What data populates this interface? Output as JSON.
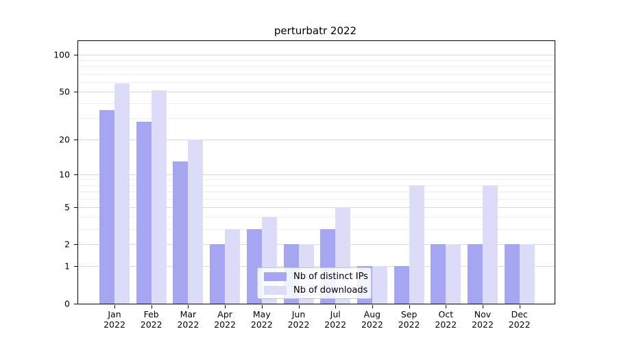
{
  "title": "perturbatr 2022",
  "chart_data": {
    "type": "bar",
    "title": "perturbatr 2022",
    "categories": [
      "Jan 2022",
      "Feb 2022",
      "Mar 2022",
      "Apr 2022",
      "May 2022",
      "Jun 2022",
      "Jul 2022",
      "Aug 2022",
      "Sep 2022",
      "Oct 2022",
      "Nov 2022",
      "Dec 2022"
    ],
    "series": [
      {
        "name": "Nb of distinct IPs",
        "color": "#a5a5f1",
        "values": [
          35,
          28,
          13,
          2,
          3,
          2,
          3,
          1,
          1,
          2,
          2,
          2
        ]
      },
      {
        "name": "Nb of downloads",
        "color": "#dcdcf9",
        "values": [
          58,
          51,
          20,
          3,
          4,
          2,
          5,
          1,
          8,
          2,
          8,
          2
        ]
      }
    ],
    "yscale": "log1p",
    "ylim": [
      0,
      130
    ],
    "yticks": [
      100,
      50,
      20,
      10,
      5,
      2,
      1,
      0
    ],
    "minor_yticks": [
      3,
      4,
      6,
      7,
      8,
      9,
      30,
      40,
      60,
      70,
      80,
      90
    ],
    "grid": true,
    "legend_position": "lower center",
    "colors": {
      "grid_major": "#d9d9d9",
      "grid_minor": "#ececec",
      "axis": "#000000",
      "background": "#ffffff"
    }
  }
}
